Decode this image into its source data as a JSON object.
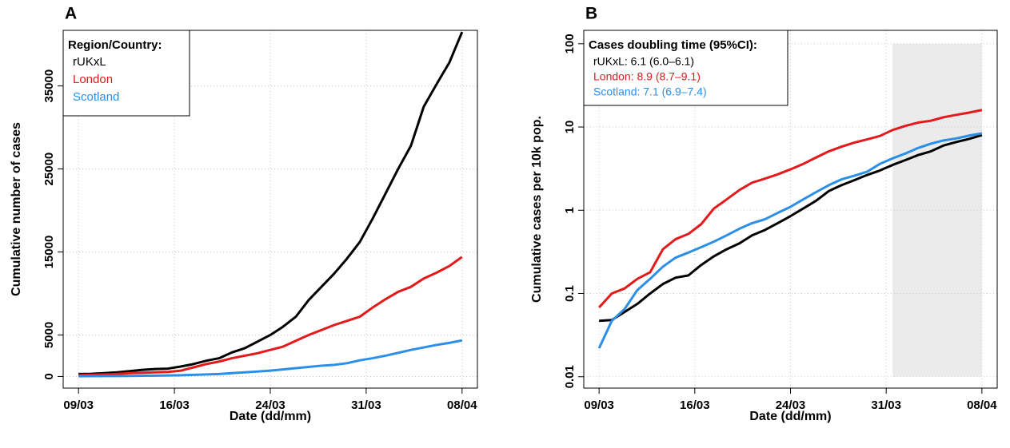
{
  "chart_data": [
    {
      "type": "line",
      "panel": "A",
      "xlabel": "Date (dd/mm)",
      "ylabel": "Cumulative number of cases",
      "x": [
        0,
        1,
        2,
        3,
        4,
        5,
        6,
        7,
        8,
        9,
        10,
        11,
        12,
        13,
        14,
        15,
        16,
        17,
        18,
        19,
        20,
        21,
        22,
        23,
        24,
        25,
        26,
        27,
        28,
        29,
        30
      ],
      "xlim": [
        -1.2,
        31.2
      ],
      "xticks": [
        {
          "value": 0,
          "label": "09/03"
        },
        {
          "value": 7.5,
          "label": "16/03"
        },
        {
          "value": 15,
          "label": "24/03"
        },
        {
          "value": 22.5,
          "label": "31/03"
        },
        {
          "value": 30,
          "label": "08/04"
        }
      ],
      "ylim": [
        -1400,
        41700
      ],
      "yticks": [
        0,
        5000,
        15000,
        25000,
        35000
      ],
      "log_y": false,
      "grid": true,
      "legend": {
        "title": "Region/Country:",
        "corner": "topleft"
      },
      "series": [
        {
          "name": "rUKxL",
          "color": "#000000",
          "values": [
            300,
            320,
            400,
            500,
            650,
            800,
            900,
            950,
            1200,
            1500,
            1900,
            2200,
            2900,
            3400,
            4200,
            5000,
            6000,
            7200,
            9200,
            10800,
            12400,
            14200,
            16200,
            19000,
            22000,
            25000,
            27800,
            32500,
            35200,
            37800,
            41500
          ]
        },
        {
          "name": "London",
          "color": "#e31a1c",
          "values": [
            150,
            200,
            250,
            300,
            400,
            450,
            500,
            550,
            700,
            1100,
            1500,
            1800,
            2200,
            2500,
            2800,
            3200,
            3600,
            4300,
            5000,
            5600,
            6200,
            6700,
            7200,
            8300,
            9300,
            10200,
            10800,
            11800,
            12500,
            13300,
            14400
          ]
        },
        {
          "name": "Scotland",
          "color": "#2b8fe8",
          "values": [
            30,
            40,
            50,
            60,
            70,
            90,
            100,
            130,
            150,
            200,
            250,
            300,
            400,
            500,
            600,
            700,
            850,
            1000,
            1150,
            1300,
            1400,
            1600,
            1950,
            2200,
            2500,
            2850,
            3200,
            3500,
            3800,
            4050,
            4350
          ]
        }
      ]
    },
    {
      "type": "line",
      "panel": "B",
      "xlabel": "Date (dd/mm)",
      "ylabel": "Cumulative cases per 10k pop.",
      "x": [
        0,
        1,
        2,
        3,
        4,
        5,
        6,
        7,
        8,
        9,
        10,
        11,
        12,
        13,
        14,
        15,
        16,
        17,
        18,
        19,
        20,
        21,
        22,
        23,
        24,
        25,
        26,
        27,
        28,
        29,
        30
      ],
      "xlim": [
        -1.2,
        31.2
      ],
      "xticks": [
        {
          "value": 0,
          "label": "09/03"
        },
        {
          "value": 7.5,
          "label": "16/03"
        },
        {
          "value": 15,
          "label": "24/03"
        },
        {
          "value": 22.5,
          "label": "31/03"
        },
        {
          "value": 30,
          "label": "08/04"
        }
      ],
      "ylim": [
        0.0073,
        145
      ],
      "yticks": [
        0.01,
        0.1,
        1,
        10,
        100
      ],
      "log_y": true,
      "grid": true,
      "shaded_region": {
        "x": [
          23,
          30
        ],
        "y": [
          0.01,
          100
        ],
        "color": "#ebebeb"
      },
      "legend": {
        "title": "Cases doubling time (95%CI):",
        "corner": "topleft"
      },
      "series": [
        {
          "name": "rUKxL: 6.1 (6.0–6.1)",
          "color": "#000000",
          "values": [
            0.047,
            0.048,
            0.06,
            0.075,
            0.1,
            0.13,
            0.155,
            0.165,
            0.22,
            0.28,
            0.34,
            0.4,
            0.5,
            0.58,
            0.7,
            0.85,
            1.05,
            1.3,
            1.7,
            2.0,
            2.3,
            2.65,
            3.0,
            3.5,
            4.0,
            4.6,
            5.1,
            6.0,
            6.6,
            7.2,
            8.0
          ]
        },
        {
          "name": "London: 8.9 (8.7–9.1)",
          "color": "#e31a1c",
          "values": [
            0.068,
            0.1,
            0.115,
            0.15,
            0.18,
            0.34,
            0.45,
            0.52,
            0.68,
            1.05,
            1.35,
            1.75,
            2.15,
            2.4,
            2.7,
            3.1,
            3.6,
            4.3,
            5.1,
            5.8,
            6.5,
            7.1,
            7.8,
            9.2,
            10.3,
            11.3,
            11.9,
            13.1,
            14.0,
            14.9,
            16.0
          ]
        },
        {
          "name": "Scotland: 7.1 (6.9–7.4)",
          "color": "#2b8fe8",
          "values": [
            0.022,
            0.047,
            0.065,
            0.11,
            0.15,
            0.21,
            0.27,
            0.31,
            0.36,
            0.42,
            0.5,
            0.6,
            0.7,
            0.78,
            0.93,
            1.1,
            1.35,
            1.65,
            2.0,
            2.35,
            2.6,
            2.9,
            3.6,
            4.2,
            4.8,
            5.6,
            6.3,
            6.9,
            7.3,
            7.9,
            8.4
          ]
        }
      ]
    }
  ]
}
